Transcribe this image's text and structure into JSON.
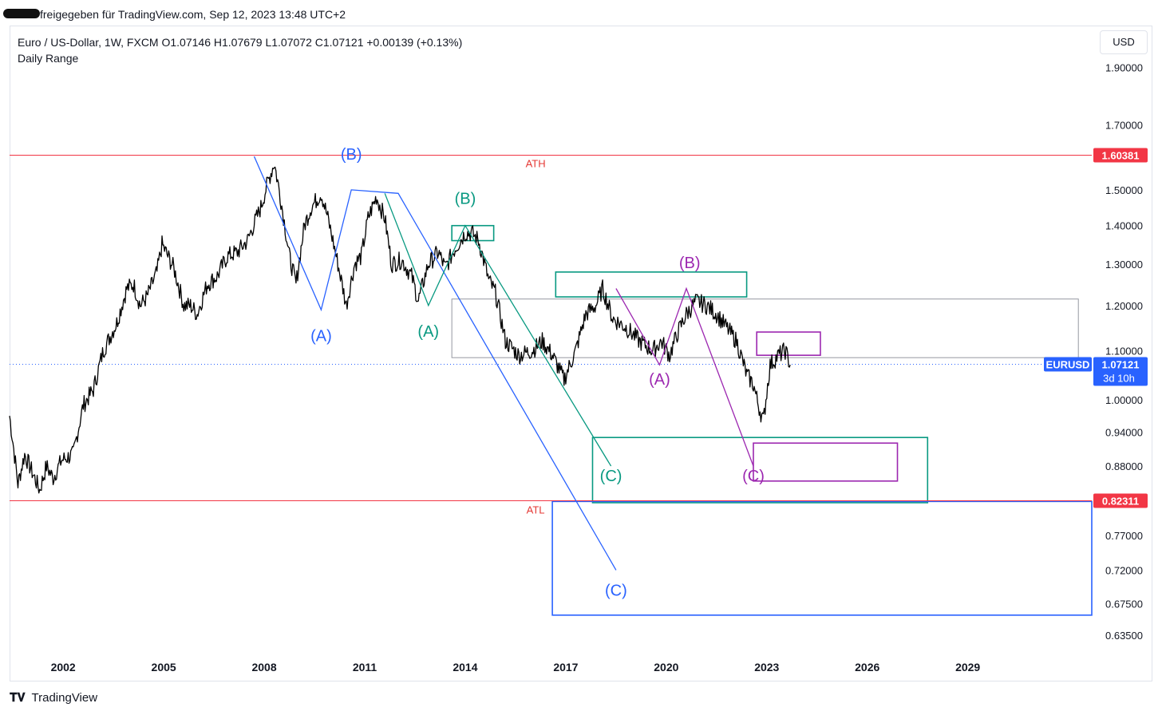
{
  "header": {
    "shared_text": "freigegeben für TradingView.com, Sep 12, 2023 13:48 UTC+2"
  },
  "legend": {
    "symbol_line": "Euro / US-Dollar, 1W, FXCM  O1.07146  H1.07679  L1.07072  C1.07121  +0.00139 (+0.13%)",
    "indicator": "Daily Range"
  },
  "currency_button": "USD",
  "footer": {
    "brand": "TradingView"
  },
  "colors": {
    "blue": "#2962ff",
    "green": "#089981",
    "purple": "#9c27b0",
    "red": "#f23645",
    "price": "#000000"
  },
  "chart_data": {
    "type": "line",
    "symbol": "EURUSD",
    "timeframe": "1W",
    "y_scale": "log",
    "ylim": [
      0.61,
      2.06
    ],
    "xlim": [
      2000.4,
      2032.7
    ],
    "y_ticks": [
      "1.90000",
      "1.70000",
      "1.50000",
      "1.40000",
      "1.30000",
      "1.20000",
      "1.10000",
      "1.00000",
      "0.94000",
      "0.88000",
      "0.77000",
      "0.72000",
      "0.67500",
      "0.63500"
    ],
    "x_ticks": [
      "2002",
      "2005",
      "2008",
      "2011",
      "2014",
      "2017",
      "2020",
      "2023",
      "2026",
      "2029"
    ],
    "price_series": {
      "name": "EURUSD",
      "x": [
        2000.4,
        2000.65,
        2000.85,
        2001.3,
        2001.5,
        2001.7,
        2001.95,
        2002.3,
        2002.6,
        2002.9,
        2003.2,
        2003.6,
        2003.9,
        2004.1,
        2004.3,
        2004.5,
        2004.8,
        2004.95,
        2005.3,
        2005.6,
        2005.8,
        2006.0,
        2006.3,
        2006.6,
        2006.9,
        2007.2,
        2007.5,
        2007.9,
        2008.1,
        2008.3,
        2008.5,
        2008.75,
        2008.95,
        2009.2,
        2009.4,
        2009.7,
        2009.9,
        2010.2,
        2010.45,
        2010.7,
        2010.9,
        2011.1,
        2011.35,
        2011.6,
        2011.8,
        2012.1,
        2012.4,
        2012.6,
        2012.9,
        2013.2,
        2013.4,
        2013.7,
        2014.0,
        2014.2,
        2014.4,
        2014.7,
        2014.9,
        2015.2,
        2015.6,
        2016.0,
        2016.3,
        2016.6,
        2016.95,
        2017.3,
        2017.6,
        2017.9,
        2018.1,
        2018.4,
        2018.8,
        2019.2,
        2019.6,
        2019.85,
        2020.1,
        2020.35,
        2020.6,
        2020.9,
        2021.2,
        2021.5,
        2021.8,
        2022.1,
        2022.4,
        2022.6,
        2022.75,
        2022.9,
        2023.1,
        2023.35,
        2023.55,
        2023.7
      ],
      "y": [
        0.97,
        0.85,
        0.9,
        0.84,
        0.88,
        0.86,
        0.89,
        0.9,
        0.99,
        1.02,
        1.1,
        1.16,
        1.24,
        1.25,
        1.2,
        1.22,
        1.28,
        1.35,
        1.29,
        1.2,
        1.2,
        1.18,
        1.25,
        1.27,
        1.32,
        1.33,
        1.36,
        1.45,
        1.52,
        1.58,
        1.47,
        1.32,
        1.25,
        1.4,
        1.45,
        1.49,
        1.42,
        1.3,
        1.2,
        1.3,
        1.32,
        1.42,
        1.48,
        1.42,
        1.3,
        1.31,
        1.27,
        1.21,
        1.3,
        1.33,
        1.29,
        1.34,
        1.38,
        1.38,
        1.36,
        1.26,
        1.23,
        1.12,
        1.09,
        1.1,
        1.12,
        1.09,
        1.04,
        1.1,
        1.18,
        1.2,
        1.24,
        1.17,
        1.15,
        1.12,
        1.1,
        1.12,
        1.09,
        1.14,
        1.18,
        1.21,
        1.2,
        1.18,
        1.15,
        1.12,
        1.05,
        1.03,
        0.99,
        0.96,
        1.07,
        1.09,
        1.1,
        1.07
      ]
    },
    "horizontal_levels": [
      {
        "label": "ATH",
        "value": 1.60381,
        "tag": "1.60381"
      },
      {
        "label": "ATL",
        "value": 0.82311,
        "tag": "0.82311"
      }
    ],
    "current_price": {
      "symbol": "EURUSD",
      "value": "1.07121",
      "countdown": "3d 10h"
    },
    "waves": [
      {
        "color": "blue",
        "x": [
          2007.7,
          2009.7,
          2010.6,
          2012.0,
          2018.5
        ],
        "y": [
          1.6,
          1.19,
          1.5,
          1.49,
          0.72
        ]
      },
      {
        "color": "green",
        "x": [
          2011.6,
          2012.9,
          2014.0,
          2018.35
        ],
        "y": [
          1.49,
          1.2,
          1.4,
          0.88
        ]
      },
      {
        "color": "purple",
        "x": [
          2018.5,
          2019.8,
          2020.6,
          2022.6
        ],
        "y": [
          1.24,
          1.07,
          1.24,
          0.88
        ]
      }
    ],
    "wave_labels": [
      {
        "text": "(A)",
        "color": "blue",
        "x": 2009.7,
        "y": 1.12
      },
      {
        "text": "(B)",
        "color": "blue",
        "x": 2010.6,
        "y": 1.59
      },
      {
        "text": "(C)",
        "color": "blue",
        "x": 2018.5,
        "y": 0.685
      },
      {
        "text": "(A)",
        "color": "green",
        "x": 2012.9,
        "y": 1.13
      },
      {
        "text": "(B)",
        "color": "green",
        "x": 2014.0,
        "y": 1.46
      },
      {
        "text": "(C)",
        "color": "green",
        "x": 2018.35,
        "y": 0.855
      },
      {
        "text": "(A)",
        "color": "purple",
        "x": 2019.8,
        "y": 1.03
      },
      {
        "text": "(B)",
        "color": "purple",
        "x": 2020.7,
        "y": 1.29
      },
      {
        "text": "(C)",
        "color": "purple",
        "x": 2022.6,
        "y": 0.855
      }
    ],
    "zones": [
      {
        "color": "gray",
        "x0": 2013.6,
        "x1": 2032.3,
        "y0": 1.085,
        "y1": 1.215
      },
      {
        "color": "green",
        "x0": 2013.6,
        "x1": 2014.85,
        "y0": 1.36,
        "y1": 1.4
      },
      {
        "color": "green",
        "x0": 2016.7,
        "x1": 2022.4,
        "y0": 1.22,
        "y1": 1.28
      },
      {
        "color": "purple",
        "x0": 2022.7,
        "x1": 2024.6,
        "y0": 1.09,
        "y1": 1.14
      },
      {
        "color": "green",
        "x0": 2017.8,
        "x1": 2027.8,
        "y0": 0.82,
        "y1": 0.93
      },
      {
        "color": "purple",
        "x0": 2022.6,
        "x1": 2026.9,
        "y0": 0.855,
        "y1": 0.92
      },
      {
        "color": "blue",
        "x0": 2016.6,
        "x1": 2032.7,
        "y0": 0.66,
        "y1": 0.822
      }
    ]
  }
}
